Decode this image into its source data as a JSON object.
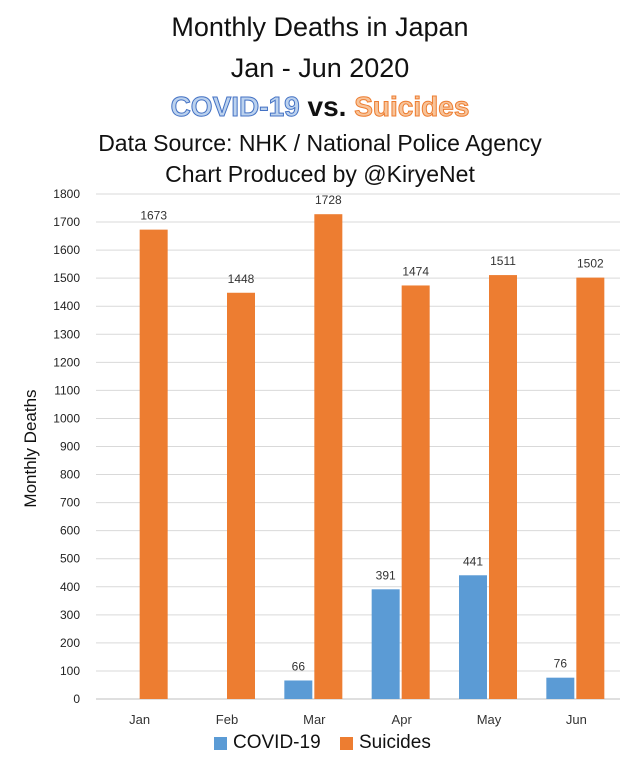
{
  "chart_data": {
    "type": "bar",
    "title_line1": "Monthly Deaths in Japan",
    "title_line2": "Jan - Jun 2020",
    "title_series_a": "COVID-19",
    "title_vs": "vs.",
    "title_series_b": "Suicides",
    "subtitle_line1": "Data Source: NHK / National Police Agency",
    "subtitle_line2": "Chart Produced by @KiryeNet",
    "ylabel": "Monthly Deaths",
    "xlabel": "",
    "ylim": [
      0,
      1800
    ],
    "ytick_step": 100,
    "grid": true,
    "legend_position": "bottom",
    "categories": [
      "Jan",
      "Feb",
      "Mar",
      "Apr",
      "May",
      "Jun"
    ],
    "series": [
      {
        "name": "COVID-19",
        "color": "#5b9bd5",
        "values": [
          null,
          null,
          66,
          391,
          441,
          76
        ]
      },
      {
        "name": "Suicides",
        "color": "#ed7d31",
        "values": [
          1673,
          1448,
          1728,
          1474,
          1511,
          1502
        ]
      }
    ]
  }
}
